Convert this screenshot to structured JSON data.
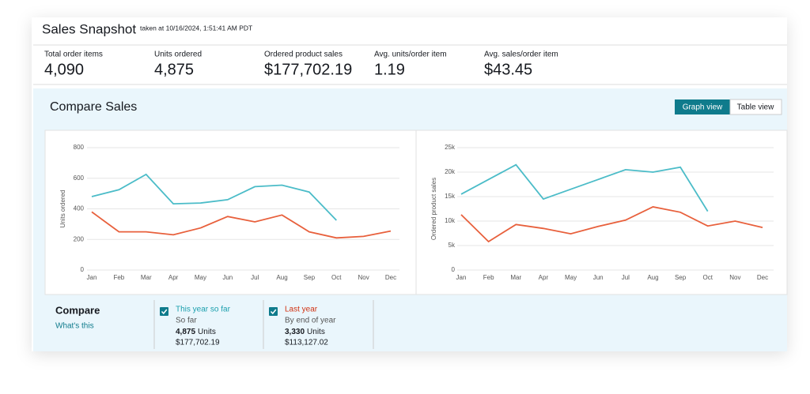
{
  "header": {
    "title": "Sales Snapshot",
    "timestamp": "taken at 10/16/2024, 1:51:41 AM PDT"
  },
  "metrics": [
    {
      "label": "Total order items",
      "value": "4,090"
    },
    {
      "label": "Units ordered",
      "value": "4,875"
    },
    {
      "label": "Ordered product sales",
      "value": "$177,702.19"
    },
    {
      "label": "Avg. units/order item",
      "value": "1.19"
    },
    {
      "label": "Avg. sales/order item",
      "value": "$43.45"
    }
  ],
  "compare_sales": {
    "title": "Compare Sales",
    "buttons": [
      "Graph view",
      "Table view"
    ]
  },
  "chart_data": [
    {
      "type": "line",
      "y_label": "Units ordered",
      "categories": [
        "Jan",
        "Feb",
        "Mar",
        "Apr",
        "May",
        "Jun",
        "Jul",
        "Aug",
        "Sep",
        "Oct",
        "Nov",
        "Dec"
      ],
      "ylim": [
        0,
        800
      ],
      "yticks": [
        0,
        200,
        400,
        600,
        800
      ],
      "grid": true,
      "series": [
        {
          "color": "#4bbcc8",
          "values": [
            480,
            525,
            625,
            433,
            438,
            460,
            545,
            555,
            510,
            325,
            null,
            null
          ]
        },
        {
          "color": "#e8603c",
          "values": [
            380,
            250,
            250,
            230,
            275,
            350,
            315,
            360,
            250,
            210,
            220,
            255
          ]
        }
      ]
    },
    {
      "type": "line",
      "y_label": "Ordered product sales",
      "categories": [
        "Jan",
        "Feb",
        "Mar",
        "Apr",
        "May",
        "Jun",
        "Jul",
        "Aug",
        "Sep",
        "Oct",
        "Nov",
        "Dec"
      ],
      "ylim": [
        0,
        25000
      ],
      "yticks": [
        0,
        {
          "value": 5000,
          "label": "5k"
        },
        {
          "value": 10000,
          "label": "10k"
        },
        {
          "value": 15000,
          "label": "15k"
        },
        {
          "value": 20000,
          "label": "20k"
        },
        {
          "value": 25000,
          "label": "25k"
        }
      ],
      "grid": true,
      "series": [
        {
          "color": "#4bbcc8",
          "values": [
            15500,
            18500,
            21500,
            14500,
            16500,
            18500,
            20500,
            20000,
            21000,
            12000,
            null,
            null
          ]
        },
        {
          "color": "#e8603c",
          "values": [
            11300,
            5800,
            9300,
            8500,
            7400,
            8900,
            10200,
            12900,
            11800,
            9000,
            10000,
            8700
          ]
        }
      ]
    }
  ],
  "compare": {
    "title": "Compare",
    "link": "What's this",
    "items": [
      {
        "name": "This year so far",
        "period": "So far",
        "units": "4,875",
        "units_suffix": "Units",
        "sales": "$177,702.19",
        "color": "#1a9fad"
      },
      {
        "name": "Last year",
        "period": "By end of year",
        "units": "3,330",
        "units_suffix": "Units",
        "sales": "$113,127.02",
        "color": "#d13212"
      }
    ]
  }
}
